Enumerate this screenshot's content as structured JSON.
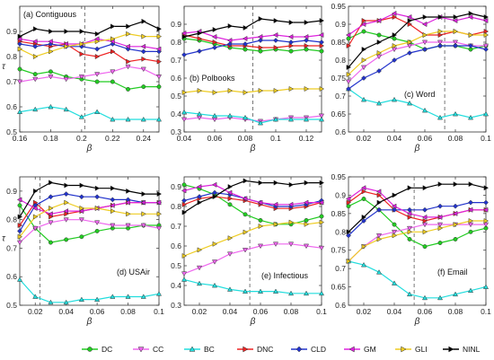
{
  "series_styles": {
    "DC": {
      "color": "#22cc22",
      "marker": "circle"
    },
    "CC": {
      "color": "#ee66ee",
      "marker": "triangle-down"
    },
    "BC": {
      "color": "#22dddd",
      "marker": "triangle-up"
    },
    "DNC": {
      "color": "#ee2222",
      "marker": "triangle-right"
    },
    "CLD": {
      "color": "#2233cc",
      "marker": "diamond"
    },
    "GM": {
      "color": "#dd22dd",
      "marker": "triangle-left"
    },
    "GLI": {
      "color": "#eecc22",
      "marker": "triangle-right"
    },
    "NINL": {
      "color": "#000000",
      "marker": "triangle-right"
    }
  },
  "legend": [
    "DC",
    "CC",
    "BC",
    "DNC",
    "CLD",
    "GM",
    "GLI",
    "NINL"
  ],
  "chart_data": [
    {
      "type": "line",
      "title": "(a) Contiguous",
      "xlabel": "β",
      "ylabel": "τ",
      "xlim": [
        0.16,
        0.25
      ],
      "ylim": [
        0.5,
        1.0
      ],
      "xticks": [
        0.16,
        0.18,
        0.2,
        0.22,
        0.24
      ],
      "xtick_labels": [
        "0.16",
        "0.18",
        "0.2",
        "0.22",
        "0.24"
      ],
      "yticks": [
        0.5,
        0.6,
        0.7,
        0.8,
        0.9
      ],
      "ytick_labels": [
        "0.5",
        "0.6",
        "0.7",
        "0.8",
        "0.9"
      ],
      "vline": 0.202,
      "x": [
        0.16,
        0.17,
        0.18,
        0.19,
        0.2,
        0.21,
        0.22,
        0.23,
        0.24,
        0.25
      ],
      "series": [
        {
          "name": "DC",
          "values": [
            0.75,
            0.73,
            0.74,
            0.72,
            0.71,
            0.7,
            0.7,
            0.67,
            0.68,
            0.68
          ]
        },
        {
          "name": "CC",
          "values": [
            0.7,
            0.71,
            0.72,
            0.71,
            0.72,
            0.73,
            0.74,
            0.76,
            0.75,
            0.72
          ]
        },
        {
          "name": "BC",
          "values": [
            0.58,
            0.59,
            0.6,
            0.59,
            0.56,
            0.58,
            0.55,
            0.55,
            0.55,
            0.55
          ]
        },
        {
          "name": "DNC",
          "values": [
            0.86,
            0.85,
            0.84,
            0.85,
            0.81,
            0.8,
            0.82,
            0.78,
            0.79,
            0.78
          ]
        },
        {
          "name": "CLD",
          "values": [
            0.85,
            0.84,
            0.85,
            0.84,
            0.84,
            0.83,
            0.85,
            0.83,
            0.82,
            0.82
          ]
        },
        {
          "name": "GM",
          "values": [
            0.87,
            0.86,
            0.86,
            0.85,
            0.85,
            0.87,
            0.86,
            0.84,
            0.84,
            0.83
          ]
        },
        {
          "name": "GLI",
          "values": [
            0.83,
            0.8,
            0.82,
            0.84,
            0.85,
            0.86,
            0.87,
            0.89,
            0.88,
            0.88
          ]
        },
        {
          "name": "NINL",
          "values": [
            0.88,
            0.91,
            0.9,
            0.9,
            0.9,
            0.89,
            0.92,
            0.92,
            0.94,
            0.91
          ]
        }
      ]
    },
    {
      "type": "line",
      "title": "(b) Polbooks",
      "xlabel": "β",
      "ylabel": "",
      "xlim": [
        0.04,
        0.13
      ],
      "ylim": [
        0.3,
        1.0
      ],
      "xticks": [
        0.04,
        0.06,
        0.08,
        0.1,
        0.12
      ],
      "xtick_labels": [
        "0.04",
        "0.06",
        "0.08",
        "0.1",
        "0.12"
      ],
      "yticks": [
        0.3,
        0.4,
        0.5,
        0.6,
        0.7,
        0.8,
        0.9
      ],
      "ytick_labels": [
        "0.3",
        "0.4",
        "0.5",
        "0.6",
        "0.7",
        "0.8",
        "0.9"
      ],
      "vline": 0.085,
      "x": [
        0.04,
        0.05,
        0.06,
        0.07,
        0.08,
        0.09,
        0.1,
        0.11,
        0.12,
        0.13
      ],
      "series": [
        {
          "name": "DC",
          "values": [
            0.82,
            0.81,
            0.79,
            0.77,
            0.76,
            0.75,
            0.76,
            0.75,
            0.76,
            0.75
          ]
        },
        {
          "name": "CC",
          "values": [
            0.37,
            0.38,
            0.37,
            0.38,
            0.37,
            0.36,
            0.37,
            0.38,
            0.38,
            0.39
          ]
        },
        {
          "name": "BC",
          "values": [
            0.41,
            0.4,
            0.39,
            0.39,
            0.38,
            0.35,
            0.37,
            0.37,
            0.37,
            0.37
          ]
        },
        {
          "name": "DNC",
          "values": [
            0.84,
            0.82,
            0.8,
            0.78,
            0.78,
            0.77,
            0.77,
            0.78,
            0.78,
            0.78
          ]
        },
        {
          "name": "CLD",
          "values": [
            0.73,
            0.75,
            0.77,
            0.79,
            0.79,
            0.81,
            0.81,
            0.8,
            0.81,
            0.8
          ]
        },
        {
          "name": "GM",
          "values": [
            0.85,
            0.86,
            0.83,
            0.81,
            0.82,
            0.83,
            0.84,
            0.83,
            0.83,
            0.84
          ]
        },
        {
          "name": "GLI",
          "values": [
            0.52,
            0.53,
            0.52,
            0.53,
            0.52,
            0.53,
            0.53,
            0.54,
            0.54,
            0.54
          ]
        },
        {
          "name": "NINL",
          "values": [
            0.83,
            0.85,
            0.87,
            0.89,
            0.88,
            0.93,
            0.92,
            0.91,
            0.91,
            0.92
          ]
        }
      ]
    },
    {
      "type": "line",
      "title": "(c) Word",
      "xlabel": "β",
      "ylabel": "",
      "xlim": [
        0.01,
        0.1
      ],
      "ylim": [
        0.6,
        0.95
      ],
      "xticks": [
        0.02,
        0.04,
        0.06,
        0.08,
        0.1
      ],
      "xtick_labels": [
        "0.02",
        "0.04",
        "0.06",
        "0.08",
        "0.1"
      ],
      "yticks": [
        0.6,
        0.65,
        0.7,
        0.75,
        0.8,
        0.85,
        0.9,
        0.95
      ],
      "ytick_labels": [
        "0.6",
        "0.65",
        "0.7",
        "0.75",
        "0.8",
        "0.85",
        "0.9",
        "0.95"
      ],
      "vline": 0.073,
      "x": [
        0.01,
        0.02,
        0.03,
        0.04,
        0.05,
        0.06,
        0.07,
        0.08,
        0.09,
        0.1
      ],
      "series": [
        {
          "name": "DC",
          "values": [
            0.86,
            0.88,
            0.87,
            0.86,
            0.85,
            0.83,
            0.84,
            0.84,
            0.83,
            0.84
          ]
        },
        {
          "name": "CC",
          "values": [
            0.74,
            0.78,
            0.81,
            0.83,
            0.84,
            0.85,
            0.85,
            0.85,
            0.84,
            0.84
          ]
        },
        {
          "name": "BC",
          "values": [
            0.72,
            0.69,
            0.68,
            0.69,
            0.68,
            0.66,
            0.64,
            0.65,
            0.64,
            0.65
          ]
        },
        {
          "name": "DNC",
          "values": [
            0.84,
            0.91,
            0.91,
            0.92,
            0.9,
            0.87,
            0.87,
            0.88,
            0.87,
            0.88
          ]
        },
        {
          "name": "CLD",
          "values": [
            0.72,
            0.75,
            0.77,
            0.8,
            0.82,
            0.83,
            0.84,
            0.84,
            0.84,
            0.83
          ]
        },
        {
          "name": "GM",
          "values": [
            0.87,
            0.9,
            0.91,
            0.93,
            0.92,
            0.9,
            0.92,
            0.91,
            0.92,
            0.91
          ]
        },
        {
          "name": "GLI",
          "values": [
            0.76,
            0.8,
            0.82,
            0.84,
            0.85,
            0.87,
            0.88,
            0.88,
            0.87,
            0.87
          ]
        },
        {
          "name": "NINL",
          "values": [
            0.78,
            0.83,
            0.85,
            0.87,
            0.91,
            0.92,
            0.92,
            0.92,
            0.93,
            0.92
          ]
        }
      ]
    },
    {
      "type": "line",
      "title": "(d) USAir",
      "xlabel": "β",
      "ylabel": "τ",
      "xlim": [
        0.01,
        0.1
      ],
      "ylim": [
        0.5,
        0.95
      ],
      "xticks": [
        0.02,
        0.04,
        0.06,
        0.08,
        0.1
      ],
      "xtick_labels": [
        "0.02",
        "0.04",
        "0.06",
        "0.08",
        "0.1"
      ],
      "yticks": [
        0.5,
        0.6,
        0.7,
        0.8,
        0.9
      ],
      "ytick_labels": [
        "0.5",
        "0.6",
        "0.7",
        "0.8",
        "0.9"
      ],
      "vline": 0.023,
      "x": [
        0.01,
        0.02,
        0.03,
        0.04,
        0.05,
        0.06,
        0.07,
        0.08,
        0.09,
        0.1
      ],
      "series": [
        {
          "name": "DC",
          "values": [
            0.85,
            0.77,
            0.72,
            0.73,
            0.74,
            0.76,
            0.77,
            0.77,
            0.78,
            0.78
          ]
        },
        {
          "name": "CC",
          "values": [
            0.72,
            0.77,
            0.79,
            0.8,
            0.8,
            0.79,
            0.78,
            0.78,
            0.78,
            0.77
          ]
        },
        {
          "name": "BC",
          "values": [
            0.59,
            0.53,
            0.51,
            0.51,
            0.52,
            0.52,
            0.53,
            0.53,
            0.53,
            0.54
          ]
        },
        {
          "name": "DNC",
          "values": [
            0.78,
            0.86,
            0.81,
            0.82,
            0.83,
            0.84,
            0.85,
            0.86,
            0.86,
            0.86
          ]
        },
        {
          "name": "CLD",
          "values": [
            0.76,
            0.85,
            0.88,
            0.89,
            0.88,
            0.88,
            0.87,
            0.87,
            0.86,
            0.86
          ]
        },
        {
          "name": "GM",
          "values": [
            0.87,
            0.84,
            0.82,
            0.83,
            0.83,
            0.84,
            0.85,
            0.86,
            0.86,
            0.86
          ]
        },
        {
          "name": "GLI",
          "values": [
            0.74,
            0.81,
            0.84,
            0.86,
            0.84,
            0.84,
            0.83,
            0.82,
            0.82,
            0.82
          ]
        },
        {
          "name": "NINL",
          "values": [
            0.81,
            0.9,
            0.93,
            0.92,
            0.92,
            0.91,
            0.91,
            0.9,
            0.89,
            0.89
          ]
        }
      ]
    },
    {
      "type": "line",
      "title": "(e) Infectious",
      "xlabel": "β",
      "ylabel": "",
      "xlim": [
        0.01,
        0.1
      ],
      "ylim": [
        0.3,
        0.95
      ],
      "xticks": [
        0.02,
        0.04,
        0.06,
        0.08,
        0.1
      ],
      "xtick_labels": [
        "0.02",
        "0.04",
        "0.06",
        "0.08",
        "0.1"
      ],
      "yticks": [
        0.3,
        0.4,
        0.5,
        0.6,
        0.7,
        0.8,
        0.9
      ],
      "ytick_labels": [
        "0.3",
        "0.4",
        "0.5",
        "0.6",
        "0.7",
        "0.8",
        "0.9"
      ],
      "vline": 0.053,
      "x": [
        0.01,
        0.02,
        0.03,
        0.04,
        0.05,
        0.06,
        0.07,
        0.08,
        0.09,
        0.1
      ],
      "series": [
        {
          "name": "DC",
          "values": [
            0.91,
            0.89,
            0.86,
            0.81,
            0.76,
            0.73,
            0.71,
            0.71,
            0.73,
            0.75
          ]
        },
        {
          "name": "CC",
          "values": [
            0.46,
            0.49,
            0.52,
            0.56,
            0.58,
            0.6,
            0.61,
            0.61,
            0.6,
            0.59
          ]
        },
        {
          "name": "BC",
          "values": [
            0.43,
            0.41,
            0.4,
            0.38,
            0.37,
            0.37,
            0.37,
            0.36,
            0.36,
            0.36
          ]
        },
        {
          "name": "DNC",
          "values": [
            0.81,
            0.84,
            0.85,
            0.84,
            0.83,
            0.81,
            0.79,
            0.79,
            0.8,
            0.82
          ]
        },
        {
          "name": "CLD",
          "values": [
            0.83,
            0.85,
            0.87,
            0.86,
            0.84,
            0.82,
            0.8,
            0.8,
            0.81,
            0.83
          ]
        },
        {
          "name": "GM",
          "values": [
            0.88,
            0.9,
            0.91,
            0.87,
            0.84,
            0.82,
            0.81,
            0.81,
            0.82,
            0.82
          ]
        },
        {
          "name": "GLI",
          "values": [
            0.55,
            0.58,
            0.61,
            0.64,
            0.67,
            0.7,
            0.71,
            0.72,
            0.71,
            0.72
          ]
        },
        {
          "name": "NINL",
          "values": [
            0.77,
            0.82,
            0.85,
            0.9,
            0.93,
            0.92,
            0.92,
            0.91,
            0.92,
            0.92
          ]
        }
      ]
    },
    {
      "type": "line",
      "title": "(f) Email",
      "xlabel": "β",
      "ylabel": "",
      "xlim": [
        0.01,
        0.1
      ],
      "ylim": [
        0.6,
        0.95
      ],
      "xticks": [
        0.02,
        0.04,
        0.06,
        0.08,
        0.1
      ],
      "xtick_labels": [
        "0.02",
        "0.04",
        "0.06",
        "0.08",
        "0.1"
      ],
      "yticks": [
        0.6,
        0.65,
        0.7,
        0.75,
        0.8,
        0.85,
        0.9,
        0.95
      ],
      "ytick_labels": [
        "0.6",
        "0.65",
        "0.7",
        "0.75",
        "0.8",
        "0.85",
        "0.9",
        "0.95"
      ],
      "vline": 0.053,
      "x": [
        0.01,
        0.02,
        0.03,
        0.04,
        0.05,
        0.06,
        0.07,
        0.08,
        0.09,
        0.1
      ],
      "series": [
        {
          "name": "DC",
          "values": [
            0.87,
            0.89,
            0.86,
            0.82,
            0.78,
            0.76,
            0.77,
            0.78,
            0.8,
            0.81
          ]
        },
        {
          "name": "CC",
          "values": [
            0.72,
            0.76,
            0.79,
            0.8,
            0.81,
            0.82,
            0.82,
            0.82,
            0.82,
            0.82
          ]
        },
        {
          "name": "BC",
          "values": [
            0.72,
            0.71,
            0.69,
            0.66,
            0.63,
            0.62,
            0.62,
            0.63,
            0.64,
            0.65
          ]
        },
        {
          "name": "DNC",
          "values": [
            0.88,
            0.91,
            0.9,
            0.86,
            0.84,
            0.83,
            0.84,
            0.85,
            0.86,
            0.86
          ]
        },
        {
          "name": "CLD",
          "values": [
            0.79,
            0.83,
            0.86,
            0.86,
            0.86,
            0.86,
            0.87,
            0.87,
            0.88,
            0.88
          ]
        },
        {
          "name": "GM",
          "values": [
            0.89,
            0.92,
            0.91,
            0.87,
            0.85,
            0.84,
            0.84,
            0.85,
            0.86,
            0.86
          ]
        },
        {
          "name": "GLI",
          "values": [
            0.72,
            0.76,
            0.78,
            0.79,
            0.8,
            0.8,
            0.81,
            0.82,
            0.83,
            0.83
          ]
        },
        {
          "name": "NINL",
          "values": [
            0.8,
            0.84,
            0.88,
            0.9,
            0.92,
            0.92,
            0.93,
            0.93,
            0.93,
            0.92
          ]
        }
      ]
    }
  ]
}
